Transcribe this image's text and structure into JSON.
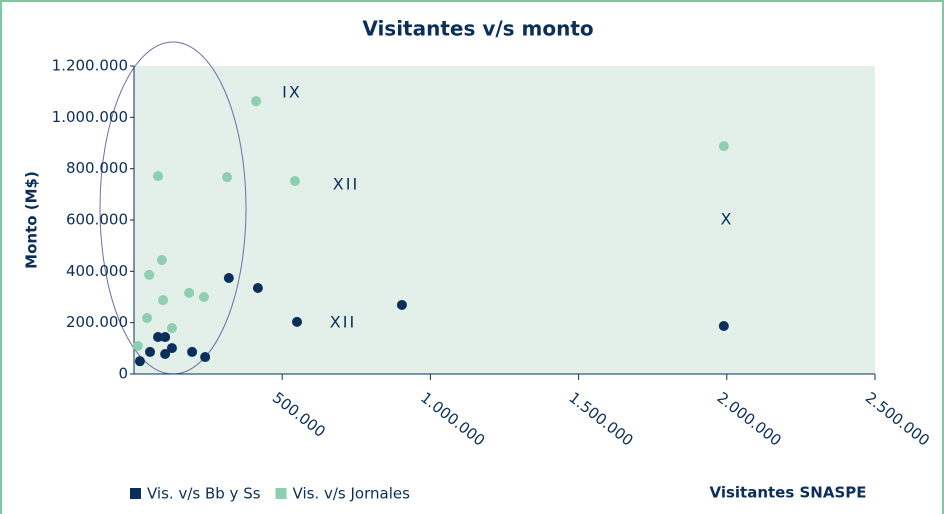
{
  "chart_data": {
    "type": "scatter",
    "title": "Visitantes v/s monto",
    "xlabel": "Visitantes SNASPE",
    "ylabel": "Monto (M$)",
    "xlim": [
      0,
      2500000
    ],
    "ylim": [
      0,
      1200000
    ],
    "xticks": [
      {
        "value": 500000,
        "label": "500.000"
      },
      {
        "value": 1000000,
        "label": "1.000.000"
      },
      {
        "value": 1500000,
        "label": "1.500.000"
      },
      {
        "value": 2000000,
        "label": "2.000.000"
      },
      {
        "value": 2500000,
        "label": "2.500.000"
      }
    ],
    "yticks": [
      0,
      {
        "value": 200000,
        "label": "200.000"
      },
      {
        "value": 400000,
        "label": "400.000"
      },
      {
        "value": 600000,
        "label": "600.000"
      },
      {
        "value": 800000,
        "label": "800.000"
      },
      {
        "value": 1000000,
        "label": "1.000.000"
      },
      {
        "value": 1200000,
        "label": "1.200.000"
      }
    ],
    "legend": "bottom-left",
    "series": [
      {
        "name": "Vis. v/s Bb y Ss",
        "color": "#0b2f5a",
        "x": [
          20000,
          54000,
          81000,
          105000,
          105000,
          128000,
          196000,
          240000,
          320000,
          418000,
          550000,
          904000,
          1990000
        ],
        "values": [
          50000,
          86000,
          144000,
          144000,
          78000,
          101000,
          86000,
          66000,
          374000,
          335000,
          203000,
          269000,
          187000
        ]
      },
      {
        "name": "Vis. v/s Jornales",
        "color": "#8ecfb0",
        "x": [
          13000,
          44000,
          51000,
          81000,
          94000,
          98000,
          128000,
          186000,
          236000,
          314000,
          412000,
          543000,
          1990000
        ],
        "values": [
          109000,
          218000,
          386000,
          771000,
          444000,
          288000,
          179000,
          316000,
          300000,
          767000,
          1063000,
          752000,
          888000
        ]
      }
    ],
    "annotations": [
      "IX",
      "XII",
      "X",
      "XII"
    ]
  }
}
